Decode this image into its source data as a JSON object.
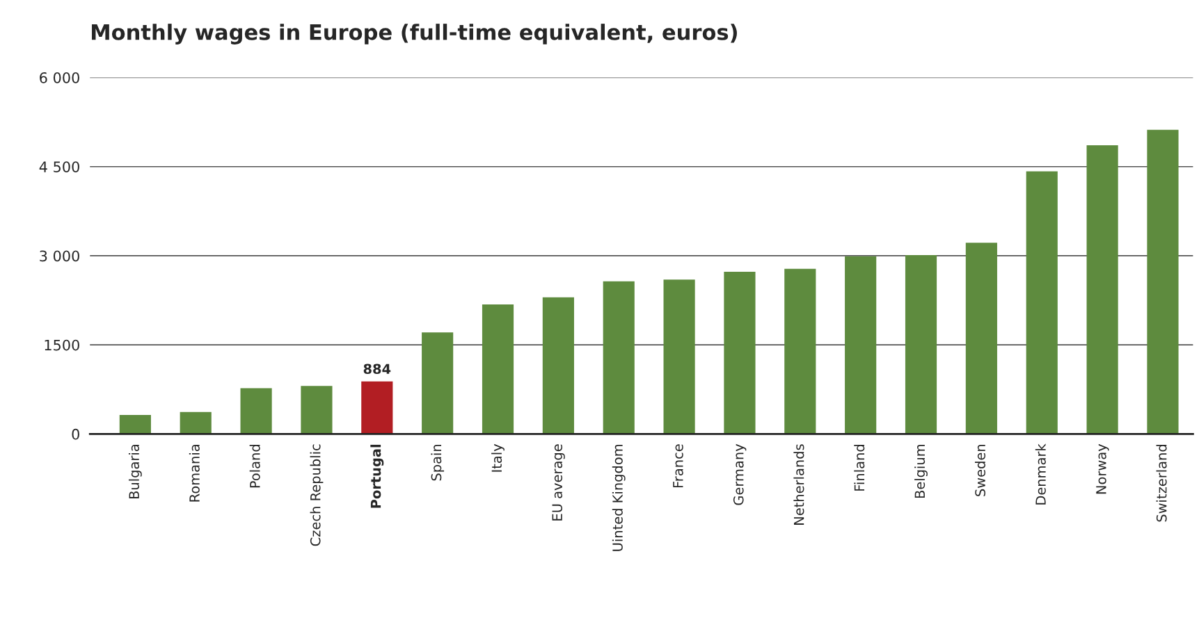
{
  "chart_data": {
    "type": "bar",
    "title": "Monthly wages in Europe (full-time equivalent, euros)",
    "categories": [
      "Bulgaria",
      "Romania",
      "Poland",
      "Czech Republic",
      "Portugal",
      "Spain",
      "Italy",
      "EU average",
      "Uinted Kingdom",
      "France",
      "Germany",
      "Netherlands",
      "Finland",
      "Belgium",
      "Sweden",
      "Denmark",
      "Norway",
      "Switzerland"
    ],
    "values": [
      320,
      370,
      770,
      810,
      884,
      1710,
      2180,
      2300,
      2570,
      2600,
      2730,
      2780,
      2990,
      3010,
      3220,
      4420,
      4860,
      5120
    ],
    "value_labels": [
      null,
      null,
      null,
      null,
      "884",
      null,
      null,
      null,
      null,
      null,
      null,
      null,
      null,
      null,
      null,
      null,
      null,
      null
    ],
    "colors": [
      "#5e8b3e",
      "#5e8b3e",
      "#5e8b3e",
      "#5e8b3e",
      "#b21e23",
      "#5e8b3e",
      "#5e8b3e",
      "#5e8b3e",
      "#5e8b3e",
      "#5e8b3e",
      "#5e8b3e",
      "#5e8b3e",
      "#5e8b3e",
      "#5e8b3e",
      "#5e8b3e",
      "#5e8b3e",
      "#5e8b3e",
      "#5e8b3e"
    ],
    "ylim": [
      0,
      6000
    ],
    "yticks": [
      0,
      1500,
      {
        "value": 3000,
        "label": "3 000"
      },
      {
        "value": 4500,
        "label": "4 500"
      },
      {
        "value": 6000,
        "label": "6 000"
      }
    ],
    "grid": "y",
    "legend": false
  }
}
